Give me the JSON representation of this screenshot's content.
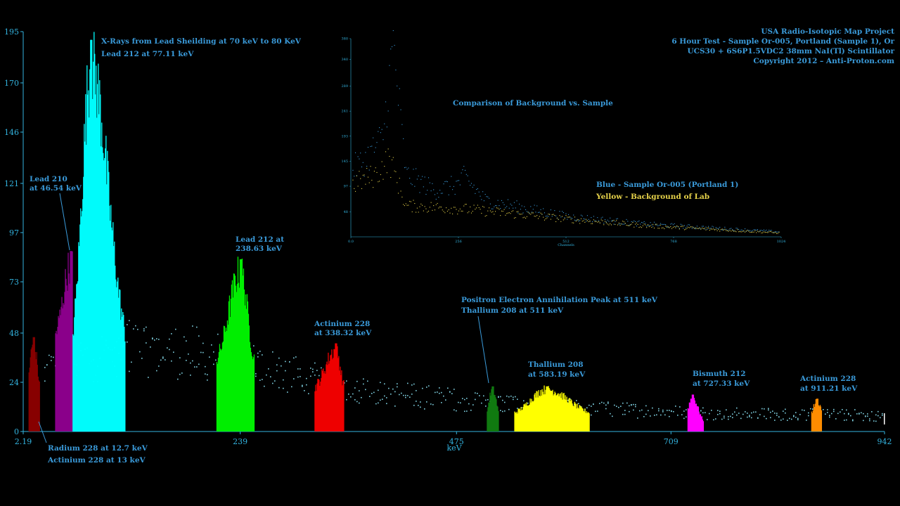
{
  "header": {
    "lines": [
      "USA Radio-Isotopic Map Project",
      "6 Hour Test - Sample Or-005, Portland (Sample 1), Or",
      "UCS30 + 6S6P1.5VDC2 38mm NaI(Tl) Scintillator",
      "Copyright 2012 – Anti-Proton.com"
    ]
  },
  "chart_data": [
    {
      "type": "bar",
      "xlabel": "keV",
      "ylabel": "",
      "xlim": [
        2.19,
        942
      ],
      "ylim": [
        0,
        195
      ],
      "x_ticks": [
        "2.19",
        "239",
        "475",
        "709",
        "942"
      ],
      "y_ticks": [
        "0",
        "24",
        "48",
        "73",
        "97",
        "121",
        "146",
        "170",
        "195"
      ],
      "peaks": [
        {
          "id": "radium",
          "color": "#8a0000",
          "x_start": 8,
          "x_end": 20,
          "peak_x": 13,
          "peak_y": 46,
          "base_y": 12
        },
        {
          "id": "lead210",
          "color": "#8b008b",
          "x_start": 37,
          "x_end": 56,
          "peak_x": 54,
          "peak_y": 88,
          "base_y": 45
        },
        {
          "id": "xray",
          "color": "#00ffff",
          "x_start": 56,
          "x_end": 113,
          "peak_x": 76,
          "peak_y": 191,
          "base_y": 30
        },
        {
          "id": "lead212_238",
          "color": "#00ee00",
          "x_start": 213,
          "x_end": 254,
          "peak_x": 239,
          "peak_y": 84,
          "base_y": 30
        },
        {
          "id": "actinium338",
          "color": "#ee0000",
          "x_start": 320,
          "x_end": 352,
          "peak_x": 343,
          "peak_y": 43,
          "base_y": 20
        },
        {
          "id": "thallium511",
          "color": "#107a10",
          "x_start": 508,
          "x_end": 521,
          "peak_x": 514,
          "peak_y": 22,
          "base_y": 3
        },
        {
          "id": "thallium583",
          "color": "#ffff00",
          "x_start": 538,
          "x_end": 620,
          "peak_x": 573,
          "peak_y": 22,
          "base_y": 8
        },
        {
          "id": "bismuth",
          "color": "#ff00ff",
          "x_start": 727,
          "x_end": 744,
          "peak_x": 732,
          "peak_y": 18,
          "base_y": 4
        },
        {
          "id": "actinium911",
          "color": "#ff8c00",
          "x_start": 862,
          "x_end": 873,
          "peak_x": 868,
          "peak_y": 16,
          "base_y": 5
        }
      ],
      "background_dots": {
        "color": "#7fd0e0",
        "levels": [
          [
            20,
            28
          ],
          [
            110,
            42
          ],
          [
            200,
            38
          ],
          [
            260,
            32
          ],
          [
            330,
            24
          ],
          [
            420,
            18
          ],
          [
            520,
            14
          ],
          [
            640,
            11
          ],
          [
            760,
            9
          ],
          [
            942,
            8
          ]
        ]
      },
      "annotations": [
        {
          "id": "a-radium-1",
          "text": "Radium 228  at 12.7 keV"
        },
        {
          "id": "a-radium-2",
          "text": "Actinium 228 at 13 keV"
        },
        {
          "id": "a-lead210-1",
          "text": "Lead 210"
        },
        {
          "id": "a-lead210-2",
          "text": "at 46.54 keV"
        },
        {
          "id": "a-xray-1",
          "text": "X-Rays from Lead Sheilding at 70 keV to 80 KeV"
        },
        {
          "id": "a-xray-2",
          "text": "Lead 212 at 77.11 keV"
        },
        {
          "id": "a-lead212-1",
          "text": "Lead 212 at"
        },
        {
          "id": "a-lead212-2",
          "text": "238.63 keV"
        },
        {
          "id": "a-act338-1",
          "text": "Actinium 228"
        },
        {
          "id": "a-act338-2",
          "text": "at 338.32 keV"
        },
        {
          "id": "a-pos-1",
          "text": "Positron Electron Annihilation Peak at 511 keV"
        },
        {
          "id": "a-pos-2",
          "text": "Thallium 208 at 511 keV"
        },
        {
          "id": "a-tl583-1",
          "text": "Thallium 208"
        },
        {
          "id": "a-tl583-2",
          "text": "at 583.19 keV"
        },
        {
          "id": "a-bi-1",
          "text": "Bismuth  212"
        },
        {
          "id": "a-bi-2",
          "text": "at 727.33 keV"
        },
        {
          "id": "a-act911-1",
          "text": "Actinium 228"
        },
        {
          "id": "a-act911-2",
          "text": "at 911.21 keV"
        }
      ]
    },
    {
      "type": "scatter",
      "title": "Comparison of Background vs. Sample",
      "xlabel": "Channels",
      "xlim": [
        0,
        1024
      ],
      "ylim": [
        0,
        380
      ],
      "x_ticks": [
        "0.0",
        "256",
        "512",
        "768",
        "1024"
      ],
      "y_ticks": [
        "48",
        "97",
        "145",
        "193",
        "241",
        "289",
        "340",
        "380"
      ],
      "series": [
        {
          "name": "Blue - Sample Or-005 (Portland 1)",
          "color": "#3a9ad9",
          "profile": [
            [
              0,
              130
            ],
            [
              30,
              145
            ],
            [
              75,
              190
            ],
            [
              100,
              370
            ],
            [
              130,
              120
            ],
            [
              200,
              90
            ],
            [
              250,
              100
            ],
            [
              270,
              115
            ],
            [
              320,
              70
            ],
            [
              512,
              40
            ],
            [
              700,
              25
            ],
            [
              1024,
              10
            ]
          ]
        },
        {
          "name": "Yellow - Background of Lab",
          "color": "#e6d24a",
          "profile": [
            [
              0,
              100
            ],
            [
              60,
              120
            ],
            [
              90,
              150
            ],
            [
              105,
              120
            ],
            [
              130,
              60
            ],
            [
              256,
              55
            ],
            [
              512,
              35
            ],
            [
              700,
              22
            ],
            [
              1024,
              8
            ]
          ]
        }
      ]
    }
  ]
}
